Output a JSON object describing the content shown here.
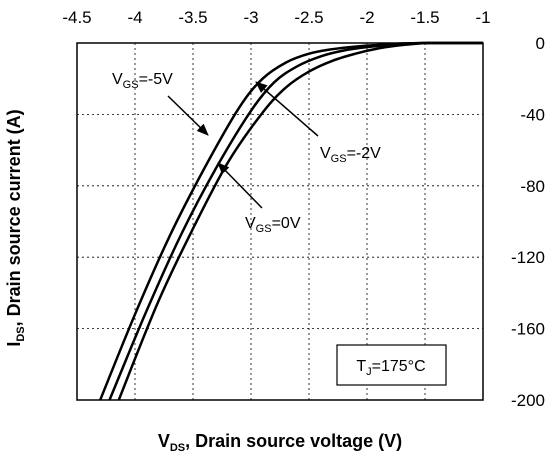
{
  "chart_data": {
    "type": "line",
    "xlabel": {
      "main": "V",
      "sub": "DS",
      "rest": ", Drain source voltage (V)"
    },
    "ylabel": {
      "main": "I",
      "sub": "DS",
      "rest": ", Drain source current (A)"
    },
    "xlim": [
      -4.5,
      -1
    ],
    "ylim": [
      -200,
      0
    ],
    "x_ticks": [
      "-4.5",
      "-4",
      "-3.5",
      "-3",
      "-2.5",
      "-2",
      "-1.5",
      "-1"
    ],
    "y_ticks": [
      "0",
      "-40",
      "-80",
      "-120",
      "-160",
      "-200"
    ],
    "x_tick_values": [
      -4.5,
      -4,
      -3.5,
      -3,
      -2.5,
      -2,
      -1.5,
      -1
    ],
    "y_tick_values": [
      0,
      -40,
      -80,
      -120,
      -160,
      -200
    ],
    "grid": true,
    "series": [
      {
        "x": [
          -4.3,
          -4.0,
          -3.7,
          -3.4,
          -3.1,
          -2.9,
          -2.7,
          -2.5,
          -2.3,
          -2.1,
          -1.9,
          -1.7,
          -1.6,
          -1.5,
          -1.0
        ],
        "y": [
          -200,
          -152,
          -108,
          -70,
          -36,
          -20,
          -11,
          -6,
          -3.5,
          -2,
          -1,
          -0.3,
          -0.1,
          0,
          0
        ]
      },
      {
        "x": [
          -4.22,
          -3.9,
          -3.6,
          -3.3,
          -3.0,
          -2.8,
          -2.6,
          -2.4,
          -2.2,
          -2.0,
          -1.8,
          -1.6,
          -1.5,
          -1.0
        ],
        "y": [
          -200,
          -150,
          -107,
          -70,
          -38,
          -22,
          -13,
          -7.5,
          -4.2,
          -2.3,
          -1.1,
          -0.3,
          0,
          0
        ]
      },
      {
        "x": [
          -4.14,
          -3.8,
          -3.5,
          -3.2,
          -2.9,
          -2.7,
          -2.5,
          -2.3,
          -2.1,
          -1.9,
          -1.7,
          -1.55,
          -1.45,
          -1.0
        ],
        "y": [
          -200,
          -145,
          -104,
          -67,
          -39,
          -25,
          -16,
          -10,
          -6,
          -3,
          -1.2,
          -0.3,
          0,
          0
        ]
      }
    ],
    "annotations": [
      {
        "main": "V",
        "sub": "GS",
        "rest": "=-5V"
      },
      {
        "main": "V",
        "sub": "GS",
        "rest": "=-2V"
      },
      {
        "main": "V",
        "sub": "GS",
        "rest": "=0V"
      }
    ],
    "condition_box": {
      "main": "T",
      "sub": "J",
      "rest": "=175°C"
    }
  }
}
